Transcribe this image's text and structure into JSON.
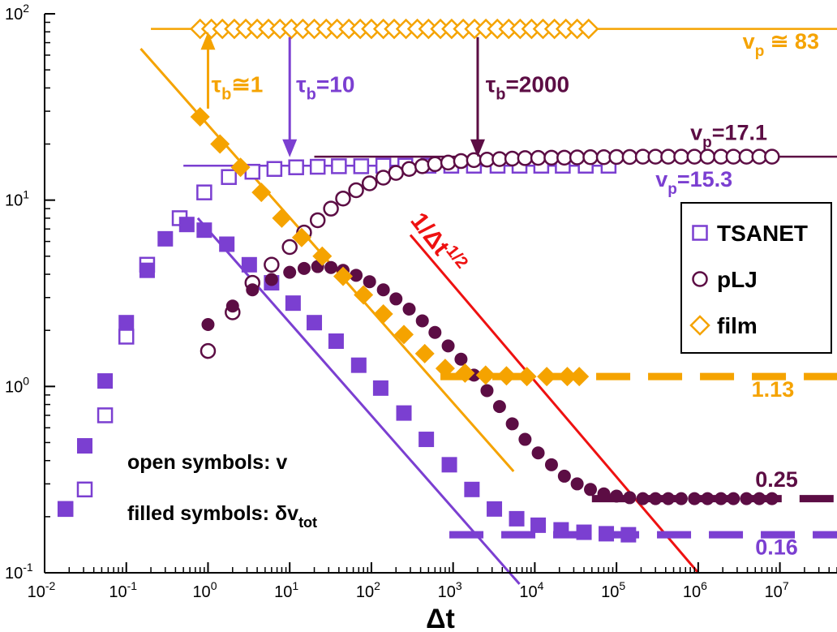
{
  "colors": {
    "tsanet": "#7b3fd1",
    "plj": "#5c0d44",
    "film": "#f5a300",
    "fit_red": "#ee1111",
    "axis": "#000000"
  },
  "chart_data": {
    "type": "scatter",
    "xscale": "log",
    "yscale": "log",
    "xlim": [
      0.01,
      50000000
    ],
    "ylim": [
      0.1,
      100
    ],
    "xlabel": "Δt",
    "ylabel": "",
    "x_ticks": [
      {
        "value": 0.01,
        "base": "10",
        "exp": "-2"
      },
      {
        "value": 0.1,
        "base": "10",
        "exp": "-1"
      },
      {
        "value": 1,
        "base": "10",
        "exp": "0"
      },
      {
        "value": 10,
        "base": "10",
        "exp": "1"
      },
      {
        "value": 100,
        "base": "10",
        "exp": "2"
      },
      {
        "value": 1000,
        "base": "10",
        "exp": "3"
      },
      {
        "value": 10000,
        "base": "10",
        "exp": "4"
      },
      {
        "value": 100000,
        "base": "10",
        "exp": "5"
      },
      {
        "value": 1000000,
        "base": "10",
        "exp": "6"
      },
      {
        "value": 10000000,
        "base": "10",
        "exp": "7"
      }
    ],
    "y_ticks": [
      {
        "value": 0.1,
        "base": "10",
        "exp": "-1"
      },
      {
        "value": 1,
        "base": "10",
        "exp": "0"
      },
      {
        "value": 10,
        "base": "10",
        "exp": "1"
      },
      {
        "value": 100,
        "base": "10",
        "exp": "2"
      }
    ],
    "series": [
      {
        "name": "TSANET v",
        "group": "tsanet",
        "marker": "square",
        "filled": false,
        "x": [
          0.018,
          0.031,
          0.055,
          0.1,
          0.18,
          0.45,
          0.9,
          1.8,
          3.5,
          6.5,
          12,
          22,
          40,
          75,
          140,
          260,
          500,
          950,
          1800,
          3500,
          6500,
          12000,
          22000,
          42000,
          80000
        ],
        "y": [
          0.22,
          0.28,
          0.7,
          1.85,
          4.5,
          8.0,
          11.0,
          13.3,
          14.2,
          14.7,
          15.0,
          15.1,
          15.2,
          15.2,
          15.3,
          15.3,
          15.3,
          15.3,
          15.3,
          15.3,
          15.3,
          15.3,
          15.3,
          15.3,
          15.3
        ]
      },
      {
        "name": "TSANET δv_tot",
        "group": "tsanet",
        "marker": "square",
        "filled": true,
        "x": [
          0.018,
          0.031,
          0.055,
          0.1,
          0.18,
          0.3,
          0.55,
          0.9,
          1.7,
          3.2,
          6,
          11,
          20,
          37,
          70,
          130,
          250,
          470,
          900,
          1700,
          3200,
          6000,
          11000,
          21000,
          40000,
          75000,
          140000
        ],
        "y": [
          0.22,
          0.48,
          1.07,
          2.2,
          4.2,
          6.2,
          7.4,
          6.9,
          5.8,
          4.5,
          3.6,
          2.8,
          2.2,
          1.75,
          1.3,
          0.98,
          0.72,
          0.52,
          0.38,
          0.28,
          0.22,
          0.195,
          0.18,
          0.17,
          0.165,
          0.162,
          0.16
        ]
      },
      {
        "name": "pLJ v",
        "group": "plj",
        "marker": "circle",
        "filled": false,
        "x": [
          1,
          2,
          3.5,
          6,
          10,
          15,
          22,
          32,
          45,
          65,
          95,
          140,
          200,
          290,
          420,
          600,
          870,
          1250,
          1800,
          2600,
          3700,
          5300,
          7600,
          11000,
          16000,
          23000,
          33000,
          48000,
          70000,
          100000,
          145000,
          210000,
          300000,
          430000,
          620000,
          900000,
          1300000,
          1900000,
          2700000,
          3900000,
          5600000,
          8000000
        ],
        "y": [
          1.55,
          2.5,
          3.6,
          4.5,
          5.6,
          6.7,
          7.8,
          9.0,
          10.2,
          11.3,
          12.3,
          13.2,
          14.0,
          14.7,
          15.2,
          15.6,
          15.9,
          16.2,
          16.4,
          16.5,
          16.6,
          16.7,
          16.8,
          16.85,
          16.9,
          16.9,
          16.95,
          17.0,
          17.0,
          17.05,
          17.05,
          17.1,
          17.1,
          17.1,
          17.1,
          17.1,
          17.1,
          17.1,
          17.1,
          17.1,
          17.1,
          17.1
        ]
      },
      {
        "name": "pLJ δv_tot",
        "group": "plj",
        "marker": "circle",
        "filled": true,
        "x": [
          1,
          2,
          3.5,
          6,
          10,
          15,
          22,
          32,
          45,
          65,
          95,
          140,
          200,
          290,
          420,
          600,
          870,
          1250,
          1800,
          2600,
          3700,
          5300,
          7600,
          11000,
          16000,
          23000,
          33000,
          48000,
          70000,
          100000,
          145000,
          210000,
          300000,
          430000,
          620000,
          900000,
          1300000,
          1900000,
          2700000,
          3900000,
          5600000,
          8000000
        ],
        "y": [
          2.15,
          2.7,
          3.3,
          3.75,
          4.1,
          4.3,
          4.4,
          4.35,
          4.2,
          3.95,
          3.65,
          3.3,
          2.95,
          2.6,
          2.25,
          1.95,
          1.65,
          1.4,
          1.15,
          0.95,
          0.78,
          0.63,
          0.52,
          0.44,
          0.38,
          0.33,
          0.3,
          0.28,
          0.265,
          0.258,
          0.253,
          0.25,
          0.25,
          0.25,
          0.25,
          0.25,
          0.25,
          0.25,
          0.25,
          0.25,
          0.25,
          0.25
        ]
      },
      {
        "name": "film v",
        "group": "film",
        "marker": "diamond",
        "filled": false,
        "x": [
          0.8,
          1.1,
          1.5,
          2.1,
          2.9,
          4,
          5.5,
          7.6,
          10.5,
          14.5,
          20,
          28,
          38,
          53,
          73,
          100,
          140,
          190,
          265,
          365,
          500,
          700,
          960,
          1330,
          1830,
          2520,
          3480,
          4800,
          6620,
          9130,
          12600,
          17400,
          24000,
          33000,
          45600
        ],
        "y": [
          83,
          83,
          83,
          83,
          83,
          83,
          83,
          83,
          83,
          83,
          83,
          83,
          83,
          83,
          83,
          83,
          83,
          83,
          83,
          83,
          83,
          83,
          83,
          83,
          83,
          83,
          83,
          83,
          83,
          83,
          83,
          83,
          83,
          83,
          83
        ]
      },
      {
        "name": "film δv_tot",
        "group": "film",
        "marker": "diamond",
        "filled": true,
        "x": [
          0.8,
          1.4,
          2.5,
          4.5,
          8,
          14,
          25,
          45,
          80,
          140,
          250,
          450,
          800,
          1400,
          2500,
          4500,
          8000,
          14000,
          25000,
          35000
        ],
        "y": [
          28,
          20,
          15,
          11,
          8,
          6.3,
          5,
          3.9,
          3.1,
          2.45,
          1.9,
          1.5,
          1.25,
          1.18,
          1.15,
          1.14,
          1.13,
          1.13,
          1.13,
          1.13
        ]
      }
    ],
    "fit_lines": [
      {
        "name": "TSANET fit",
        "group": "tsanet",
        "style": "solid",
        "x": [
          0.75,
          6500
        ],
        "y": [
          8.0,
          0.087
        ]
      },
      {
        "name": "film fit",
        "group": "film",
        "style": "solid",
        "x": [
          0.15,
          5500
        ],
        "y": [
          65,
          0.35
        ]
      },
      {
        "name": "1/Δt^1/2",
        "group": "fit_red",
        "style": "solid",
        "x": [
          300,
          1000000
        ],
        "y": [
          6.5,
          0.1
        ]
      },
      {
        "name": "TSANET plateau v",
        "group": "tsanet",
        "style": "thin",
        "x": [
          0.5,
          80000
        ],
        "y": [
          15.3,
          15.3
        ]
      },
      {
        "name": "pLJ plateau v",
        "group": "plj",
        "style": "thin",
        "x": [
          20,
          50000000
        ],
        "y": [
          17.1,
          17.1
        ]
      },
      {
        "name": "film plateau v",
        "group": "film",
        "style": "thin",
        "x": [
          0.2,
          50000000
        ],
        "y": [
          83,
          83
        ]
      },
      {
        "name": "film plateau δv",
        "group": "film",
        "style": "dashed",
        "x": [
          700,
          50000000
        ],
        "y": [
          1.13,
          1.13
        ]
      },
      {
        "name": "pLJ plateau δv",
        "group": "plj",
        "style": "dashed",
        "x": [
          50000,
          50000000
        ],
        "y": [
          0.25,
          0.25
        ]
      },
      {
        "name": "TSANET plateau δv",
        "group": "tsanet",
        "style": "dashed",
        "x": [
          900,
          50000000
        ],
        "y": [
          0.16,
          0.16
        ]
      }
    ],
    "arrows": [
      {
        "group": "film",
        "x": 1,
        "y_from": 31,
        "y_to": 80,
        "text": "τ",
        "sub": "b",
        "after": "≅1",
        "label_x": 1.1,
        "label_y": 38
      },
      {
        "group": "tsanet",
        "x": 10,
        "y_from": 75,
        "y_to": 17,
        "text": "τ",
        "sub": "b",
        "after": "=10",
        "label_x": 12,
        "label_y": 38
      },
      {
        "group": "plj",
        "x": 2000,
        "y_from": 75,
        "y_to": 17,
        "text": "τ",
        "sub": "b",
        "after": "=2000",
        "label_x": 2500,
        "label_y": 38
      }
    ],
    "plateau_labels": [
      {
        "group": "film",
        "text": "v",
        "sub": "p",
        "after": " ≅ 83",
        "x": 3500000,
        "y": 65
      },
      {
        "group": "plj",
        "text": "v",
        "sub": "p",
        "after": "=17.1",
        "x": 800000,
        "y": 21
      },
      {
        "group": "tsanet",
        "text": "v",
        "sub": "p",
        "after": "=15.3",
        "x": 300000,
        "y": 11.8
      },
      {
        "group": "film",
        "text": "1.13",
        "sub": "",
        "after": "",
        "x": 4500000,
        "y": 0.88
      },
      {
        "group": "plj",
        "text": "0.25",
        "sub": "",
        "after": "",
        "x": 5000000,
        "y": 0.29
      },
      {
        "group": "tsanet",
        "text": "0.16",
        "sub": "",
        "after": "",
        "x": 5000000,
        "y": 0.125
      }
    ],
    "annotations": {
      "red_slope": {
        "base": "1/Δt",
        "exp": "1/2"
      },
      "open_symbols": "open symbols: v",
      "filled_symbols_prefix": "filled symbols: δv",
      "filled_symbols_sub": "tot"
    },
    "legend": {
      "position": "right",
      "entries": [
        {
          "label": "TSANET",
          "group": "tsanet",
          "marker": "square"
        },
        {
          "label": "pLJ",
          "group": "plj",
          "marker": "circle"
        },
        {
          "label": "film",
          "group": "film",
          "marker": "diamond"
        }
      ]
    }
  }
}
